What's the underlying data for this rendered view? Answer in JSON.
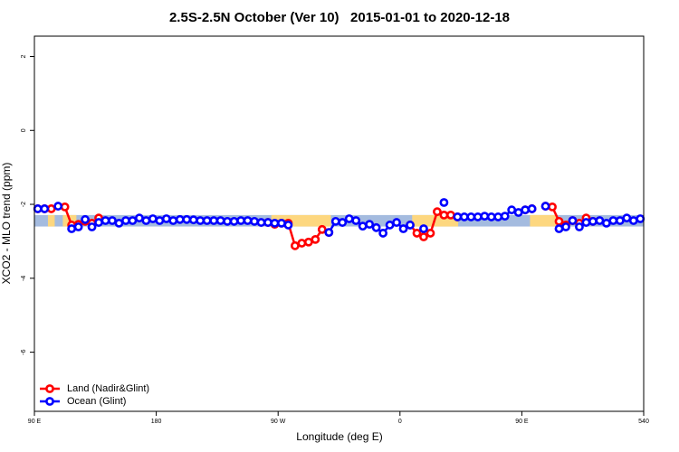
{
  "chart_data": {
    "type": "line",
    "title": "2.5S-2.5N October (Ver 10)   2015-01-01 to 2020-12-18",
    "x_label": "Longitude (deg E)",
    "y_label": "XCO2 - MLO trend (ppm)",
    "xlim": [
      90,
      540
    ],
    "xticks": [
      {
        "value": 90,
        "label": "90 E"
      },
      180,
      {
        "value": 270,
        "label": "90 W"
      },
      {
        "value": 360,
        "label": "0"
      },
      {
        "value": 450,
        "label": "90 E"
      },
      540
    ],
    "ylim": [
      -7.6,
      2.55
    ],
    "yticks": [
      -6,
      -4,
      -2,
      0,
      2
    ],
    "legend": "bottom-left",
    "mask": {
      "band": [
        -2.6,
        -2.29
      ],
      "ocean_color": "#a4bbdf",
      "land_color": "#fdd77f",
      "land": [
        [
          100,
          105
        ],
        [
          111,
          121
        ],
        [
          265,
          309
        ],
        [
          369,
          403
        ],
        [
          456,
          476
        ]
      ]
    },
    "x": [
      92.5,
      97.5,
      102.5,
      107.5,
      112.5,
      117.5,
      122.5,
      127.5,
      132.5,
      137.5,
      142.5,
      147.5,
      152.5,
      157.5,
      162.5,
      167.5,
      172.5,
      177.5,
      182.5,
      187.5,
      192.5,
      197.5,
      202.5,
      207.5,
      212.5,
      217.5,
      222.5,
      227.5,
      232.5,
      237.5,
      242.5,
      247.5,
      252.5,
      257.5,
      262.5,
      267.5,
      272.5,
      277.5,
      282.5,
      287.5,
      292.5,
      297.5,
      302.5,
      307.5,
      312.5,
      317.5,
      322.5,
      327.5,
      332.5,
      337.5,
      342.5,
      347.5,
      352.5,
      357.5,
      362.5,
      367.5,
      372.5,
      377.5,
      382.5,
      387.5,
      392.5,
      397.5,
      402.5,
      407.5,
      412.5,
      417.5,
      422.5,
      427.5,
      432.5,
      437.5,
      442.5,
      447.5,
      452.5,
      457.5,
      462.5,
      467.5,
      472.5,
      477.5,
      482.5,
      487.5,
      492.5,
      497.5,
      502.5,
      507.5,
      512.5,
      517.5,
      522.5,
      527.5,
      532.5,
      537.5
    ],
    "series": [
      {
        "name": "Land (Nadir&Glint)",
        "color": "#ff0000",
        "values": [
          -2.12,
          -2.12,
          -2.12,
          null,
          -2.07,
          -2.56,
          -2.54,
          -2.46,
          -2.51,
          -2.37,
          null,
          null,
          null,
          null,
          null,
          null,
          null,
          null,
          null,
          null,
          null,
          null,
          null,
          null,
          null,
          null,
          null,
          null,
          null,
          null,
          null,
          null,
          null,
          null,
          -2.49,
          -2.54,
          -2.51,
          -2.51,
          -3.12,
          -3.05,
          -3.02,
          -2.95,
          -2.68,
          -2.76,
          null,
          null,
          null,
          null,
          null,
          null,
          null,
          null,
          null,
          null,
          null,
          -2.56,
          -2.78,
          -2.88,
          -2.78,
          -2.2,
          -2.29,
          -2.29,
          -2.34,
          null,
          null,
          null,
          null,
          null,
          null,
          null,
          null,
          null,
          -2.15,
          -2.12,
          null,
          -2.05,
          -2.07,
          -2.46,
          -2.56,
          -2.44,
          -2.51,
          -2.37,
          -2.46,
          null,
          null,
          null,
          null,
          null,
          null,
          null
        ]
      },
      {
        "name": "Ocean (Glint)",
        "color": "#0000ff",
        "values": [
          -2.12,
          -2.12,
          null,
          -2.05,
          null,
          -2.66,
          -2.61,
          -2.41,
          -2.61,
          -2.49,
          -2.44,
          -2.44,
          -2.51,
          -2.44,
          -2.44,
          -2.37,
          -2.44,
          -2.39,
          -2.44,
          -2.39,
          -2.44,
          -2.41,
          -2.41,
          -2.42,
          -2.44,
          -2.44,
          -2.44,
          -2.44,
          -2.46,
          -2.46,
          -2.44,
          -2.44,
          -2.46,
          -2.49,
          -2.49,
          -2.51,
          -2.51,
          -2.56,
          null,
          null,
          null,
          null,
          null,
          -2.76,
          -2.46,
          -2.49,
          -2.39,
          -2.44,
          -2.59,
          -2.54,
          -2.63,
          -2.78,
          -2.56,
          -2.49,
          -2.66,
          -2.56,
          null,
          -2.66,
          null,
          null,
          -1.95,
          null,
          -2.34,
          -2.34,
          -2.34,
          -2.34,
          -2.32,
          -2.34,
          -2.34,
          -2.32,
          -2.15,
          -2.22,
          -2.15,
          -2.12,
          null,
          -2.05,
          null,
          -2.66,
          -2.61,
          -2.44,
          -2.61,
          -2.49,
          -2.46,
          -2.44,
          -2.51,
          -2.44,
          -2.44,
          -2.37,
          -2.44,
          -2.39
        ]
      }
    ]
  }
}
